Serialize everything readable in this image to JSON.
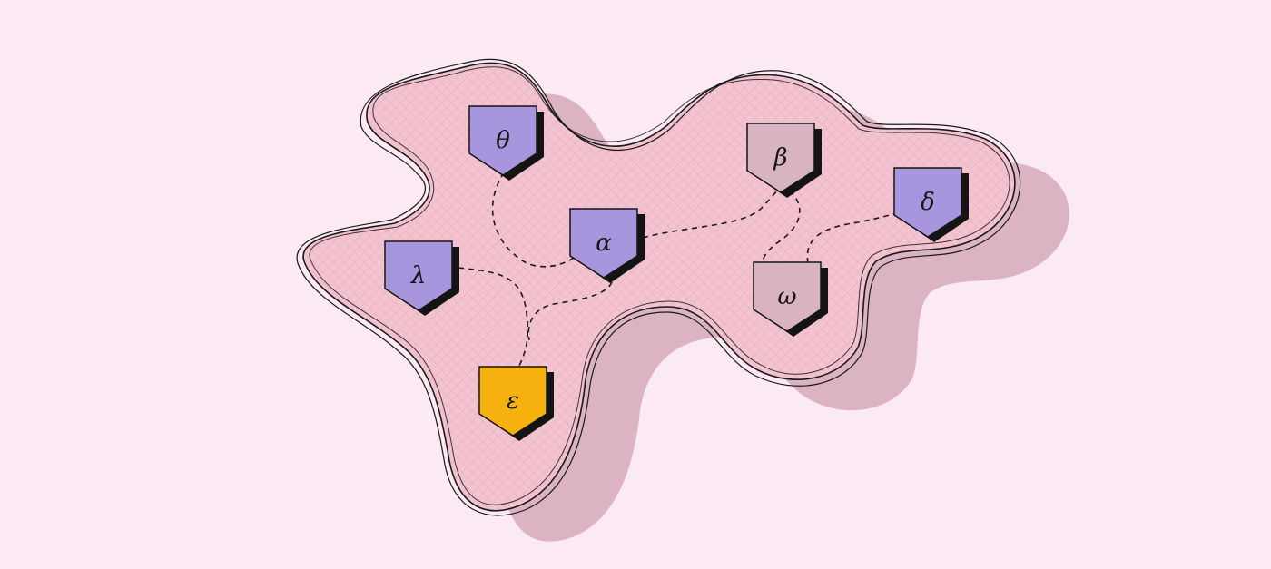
{
  "diagram": {
    "nodes": [
      {
        "id": "theta",
        "label": "θ",
        "color": "#a795dd"
      },
      {
        "id": "alpha",
        "label": "α",
        "color": "#a795dd"
      },
      {
        "id": "lambda",
        "label": "λ",
        "color": "#a795dd"
      },
      {
        "id": "epsilon",
        "label": "ε",
        "color": "#f6b10f"
      },
      {
        "id": "beta",
        "label": "β",
        "color": "#d8b4c2"
      },
      {
        "id": "omega",
        "label": "ω",
        "color": "#d8b4c2"
      },
      {
        "id": "delta",
        "label": "δ",
        "color": "#a795dd"
      }
    ],
    "edges": [
      {
        "from": "theta",
        "to": "alpha"
      },
      {
        "from": "alpha",
        "to": "beta"
      },
      {
        "from": "lambda",
        "to": "epsilon"
      },
      {
        "from": "alpha",
        "to": "epsilon"
      },
      {
        "from": "beta",
        "to": "omega"
      },
      {
        "from": "omega",
        "to": "delta"
      }
    ],
    "colors": {
      "background": "#fbe9f3",
      "blob_fill": "#f3c3d0",
      "blob_shadow": "#dcb3c2",
      "outline": "#1a1a1a",
      "node_shadow": "#141414"
    }
  }
}
